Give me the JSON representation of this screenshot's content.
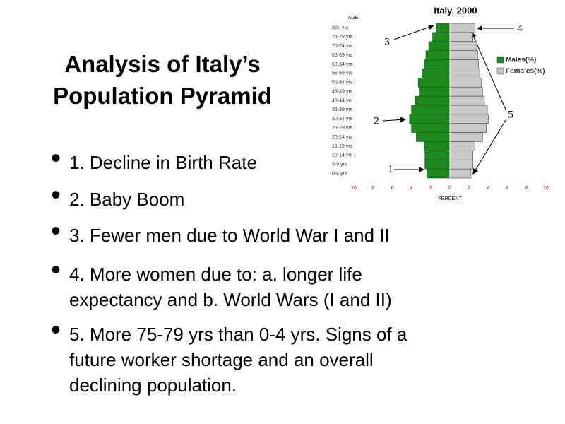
{
  "title_lines": [
    "Analysis of Italy’s",
    "Population Pyramid"
  ],
  "bullets": [
    [
      "1. Decline in Birth Rate"
    ],
    [
      "2. Baby Boom"
    ],
    [
      "3. Fewer men due to World War I and II"
    ],
    [
      "4. More women due to: a. longer life",
      "expectancy and b. World Wars (I and II)"
    ],
    [
      "5. More 75-79 yrs than 0-4 yrs. Signs of a",
      "future worker shortage and an overall",
      "declining population."
    ]
  ],
  "chart_data": {
    "type": "pyramid",
    "title": "Italy, 2000",
    "y_label": "AGE",
    "x_label": "PERCENT",
    "categories": [
      "0-4 yrs",
      "5-9 yrs",
      "10-14 yrs",
      "15-19 yrs",
      "20-24 yrs",
      "25-29 yrs",
      "30-34 yrs",
      "35-39 yrs",
      "40-44 yrs",
      "45-49 yrs",
      "50-54 yrs",
      "55-59 yrs",
      "60-64 yrs",
      "65-69 yrs",
      "70-74 yrs",
      "75-79 yrs",
      "80+ yrs"
    ],
    "series": [
      {
        "name": "Males(%)",
        "color": "#1a8a1a",
        "side": "left",
        "values": [
          2.4,
          2.6,
          2.6,
          2.7,
          3.5,
          4.0,
          4.2,
          4.0,
          3.6,
          3.2,
          3.3,
          2.9,
          2.7,
          2.5,
          2.2,
          1.8,
          1.4
        ]
      },
      {
        "name": "Females(%)",
        "color": "#c8c8c8",
        "side": "right",
        "values": [
          2.2,
          2.4,
          2.4,
          2.6,
          3.4,
          3.8,
          4.0,
          3.9,
          3.6,
          3.4,
          3.3,
          3.1,
          3.0,
          2.9,
          2.8,
          2.4,
          2.6
        ]
      }
    ],
    "xlim": [
      0,
      10
    ],
    "xticks_left": [
      10,
      8,
      6,
      4,
      2
    ],
    "xticks_right": [
      0,
      2,
      4,
      6,
      8,
      10
    ],
    "annotations": [
      "1",
      "2",
      "3",
      "4",
      "5"
    ]
  }
}
